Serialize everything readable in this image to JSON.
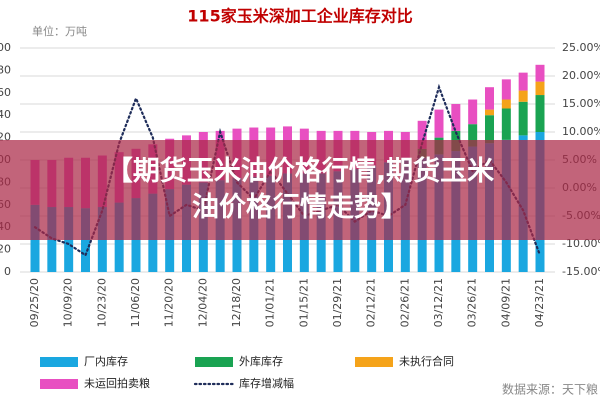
{
  "chart_data": {
    "type": "bar",
    "title": "115家玉米深加工企业库存对比",
    "y_label": "单位：万吨",
    "source": "数据来源：天下粮",
    "categories": [
      "09/25/20",
      null,
      "10/09/20",
      null,
      "10/23/20",
      null,
      "11/06/20",
      null,
      "11/20/20",
      null,
      "12/04/20",
      null,
      "12/18/20",
      null,
      "01/01/21",
      null,
      "01/15/21",
      null,
      "01/29/21",
      null,
      "02/12/21",
      null,
      "02/26/21",
      null,
      "03/12/21",
      null,
      "03/26/21",
      null,
      "04/09/21",
      null,
      "04/23/21"
    ],
    "series": [
      {
        "name": "厂内库存",
        "color": "#1aa7e0",
        "values": [
          60,
          58,
          58,
          57,
          58,
          62,
          66,
          70,
          74,
          78,
          80,
          82,
          84,
          85,
          86,
          88,
          88,
          88,
          90,
          92,
          95,
          98,
          100,
          102,
          105,
          108,
          112,
          115,
          118,
          122,
          125
        ]
      },
      {
        "name": "外库库存",
        "color": "#1aa352",
        "values": [
          0,
          0,
          0,
          0,
          0,
          0,
          0,
          0,
          0,
          0,
          0,
          0,
          0,
          0,
          0,
          0,
          0,
          0,
          0,
          0,
          0,
          0,
          0,
          8,
          15,
          18,
          20,
          25,
          28,
          30,
          33
        ]
      },
      {
        "name": "未执行合同",
        "color": "#f5a31a",
        "values": [
          0,
          0,
          0,
          0,
          0,
          0,
          0,
          0,
          0,
          0,
          0,
          0,
          0,
          0,
          0,
          0,
          0,
          0,
          0,
          0,
          0,
          0,
          0,
          0,
          0,
          0,
          0,
          5,
          8,
          10,
          12
        ]
      },
      {
        "name": "未运回拍卖粮",
        "color": "#e84fc1",
        "values": [
          40,
          42,
          44,
          45,
          46,
          45,
          44,
          44,
          45,
          44,
          45,
          44,
          44,
          44,
          43,
          42,
          40,
          38,
          36,
          34,
          30,
          28,
          25,
          25,
          25,
          24,
          22,
          20,
          18,
          16,
          15
        ]
      },
      {
        "name": "库存增减幅",
        "color": "#1f2d5a",
        "type": "line",
        "axis": "y2",
        "values": [
          -7,
          -9,
          -10,
          -12,
          -4,
          8,
          16,
          9,
          -5,
          -3,
          -4,
          10,
          1,
          -2,
          3,
          -1,
          -5,
          -4,
          -3,
          -6,
          -4,
          -5,
          -3,
          8,
          18,
          10,
          3,
          5,
          1,
          -4,
          -12
        ]
      }
    ],
    "ylim": [
      0,
      200
    ],
    "yticks": [
      0,
      20,
      40,
      60,
      80,
      100,
      120,
      140,
      160,
      180,
      200
    ],
    "y2lim": [
      -15,
      25
    ],
    "y2ticks": [
      {
        "value": -15,
        "label": "-15.00%"
      },
      {
        "value": -10,
        "label": "-10.00%"
      },
      {
        "value": -5,
        "label": "-5.00%"
      },
      {
        "value": 0,
        "label": "0.00%"
      },
      {
        "value": 5,
        "label": "5.00%"
      },
      {
        "value": 10,
        "label": "10.00%"
      },
      {
        "value": 15,
        "label": "15.00%"
      },
      {
        "value": 20,
        "label": "20.00%"
      },
      {
        "value": 25,
        "label": "25.00%"
      }
    ],
    "grid": true,
    "legend": "bottom"
  },
  "overlay": {
    "lines": [
      "【期货玉米油价格行情,期货玉米",
      "油价格行情走势】"
    ]
  }
}
